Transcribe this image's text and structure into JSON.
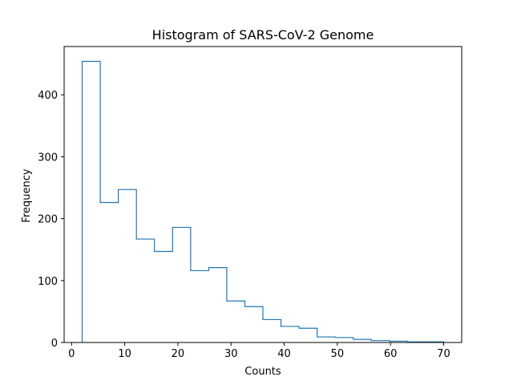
{
  "colors": {
    "series": "#1f77b4",
    "axes": "#000000",
    "background": "#ffffff"
  },
  "chart_data": {
    "type": "histogram",
    "title": "Histogram of SARS-CoV-2 Genome",
    "xlabel": "Counts",
    "ylabel": "Frequency",
    "xlim": [
      -1.4,
      73.4
    ],
    "ylim": [
      0,
      478
    ],
    "xticks": [
      0,
      10,
      20,
      30,
      40,
      50,
      60,
      70
    ],
    "yticks": [
      0,
      100,
      200,
      300,
      400
    ],
    "histtype": "step",
    "grid": false,
    "bin_edges": [
      2,
      5.4,
      8.8,
      12.2,
      15.6,
      19,
      22.4,
      25.8,
      29.2,
      32.6,
      36,
      39.4,
      42.8,
      46.2,
      49.6,
      53,
      56.4,
      59.8,
      63.2,
      66.6,
      70
    ],
    "counts": [
      454,
      226,
      247,
      167,
      147,
      186,
      116,
      121,
      67,
      58,
      37,
      26,
      23,
      9,
      8,
      5,
      3,
      2,
      1,
      1
    ]
  }
}
